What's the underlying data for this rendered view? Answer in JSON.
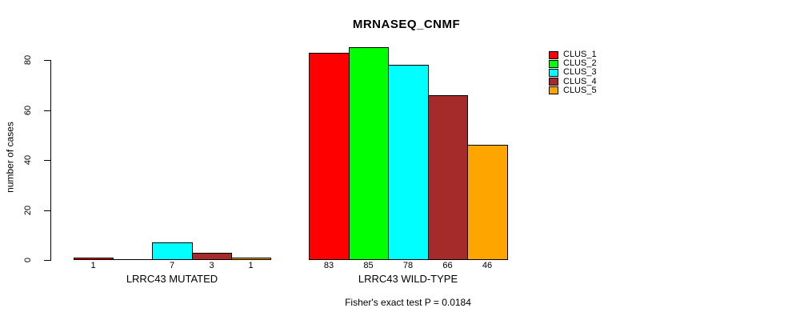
{
  "chart_data": {
    "type": "bar",
    "title": "MRNASEQ_CNMF",
    "ylabel": "number of cases",
    "xlabel": "",
    "groups": [
      "LRRC43 MUTATED",
      "LRRC43 WILD-TYPE"
    ],
    "series": [
      {
        "name": "CLUS_1",
        "color": "#FF0000",
        "values": [
          1,
          83
        ]
      },
      {
        "name": "CLUS_2",
        "color": "#00FF00",
        "values": [
          0,
          85
        ]
      },
      {
        "name": "CLUS_3",
        "color": "#00FFFF",
        "values": [
          7,
          78
        ]
      },
      {
        "name": "CLUS_4",
        "color": "#A52A2A",
        "values": [
          3,
          66
        ]
      },
      {
        "name": "CLUS_5",
        "color": "#FFA500",
        "values": [
          1,
          46
        ]
      }
    ],
    "bar_value_labels": [
      [
        "1",
        "",
        "7",
        "3",
        "1"
      ],
      [
        "83",
        "85",
        "78",
        "66",
        "46"
      ]
    ],
    "y_ticks": [
      0,
      20,
      40,
      60,
      80
    ],
    "ylim": [
      0,
      85
    ],
    "grid": false,
    "legend_position": "top-right",
    "legend_entries": [
      "CLUS_1",
      "CLUS_2",
      "CLUS_3",
      "CLUS_4",
      "CLUS_5"
    ],
    "annotation": "Fisher's exact test P = 0.0184"
  },
  "colors": {
    "background": "#FFFFFF",
    "text": "#000000",
    "axis": "#000000"
  }
}
